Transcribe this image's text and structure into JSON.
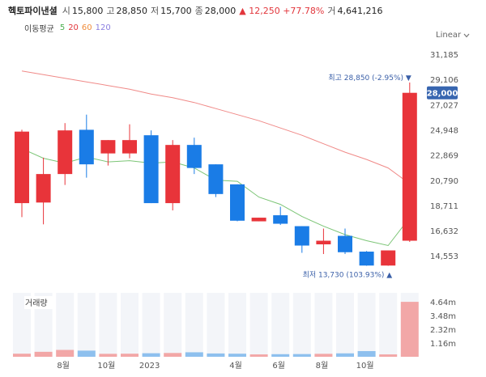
{
  "header": {
    "title": "헥토파이낸셜",
    "stats": [
      {
        "label": "시",
        "value": "15,800"
      },
      {
        "label": "고",
        "value": "28,850"
      },
      {
        "label": "저",
        "value": "15,700"
      },
      {
        "label": "종",
        "value": "28,000"
      }
    ],
    "change_arrow": "▲",
    "change_value": "12,250",
    "change_pct": "+77.78%",
    "volume_label": "거",
    "volume_value": "4,641,216"
  },
  "ma_legend": {
    "title": "이동평균",
    "items": [
      {
        "label": "5",
        "color": "#4caf50"
      },
      {
        "label": "20",
        "color": "#e2363c"
      },
      {
        "label": "60",
        "color": "#f08c3a"
      },
      {
        "label": "120",
        "color": "#8a7ee0"
      }
    ]
  },
  "scale_toggle": {
    "label": "Linear",
    "icon": "chevron-down-icon"
  },
  "colors": {
    "up": "#e8343a",
    "down": "#1a7ce6",
    "ma5": "#7cc576",
    "ma20": "#f08a88",
    "vol_up": "#f2a7a7",
    "vol_down": "#8ec0ee",
    "vol_bg": "#f3f5f9"
  },
  "chart_data": {
    "type": "candlestick",
    "y_ticks": [
      "31,185",
      "29,106",
      "27,027",
      "24,948",
      "22,869",
      "20,790",
      "18,711",
      "16,632",
      "14,553"
    ],
    "ylim": [
      13700,
      31185
    ],
    "candles": [
      {
        "o": 18900,
        "h": 24950,
        "l": 17750,
        "c": 24800
      },
      {
        "o": 18950,
        "h": 22650,
        "l": 17150,
        "c": 21300
      },
      {
        "o": 21300,
        "h": 25500,
        "l": 20400,
        "c": 24900
      },
      {
        "o": 24950,
        "h": 26200,
        "l": 21000,
        "c": 22100
      },
      {
        "o": 23000,
        "h": 24100,
        "l": 22000,
        "c": 24100
      },
      {
        "o": 23000,
        "h": 25400,
        "l": 22600,
        "c": 24100
      },
      {
        "o": 24500,
        "h": 24900,
        "l": 18900,
        "c": 18900
      },
      {
        "o": 18900,
        "h": 24100,
        "l": 18300,
        "c": 23700
      },
      {
        "o": 23700,
        "h": 24300,
        "l": 21300,
        "c": 21800
      },
      {
        "o": 22100,
        "h": 22100,
        "l": 19400,
        "c": 19650
      },
      {
        "o": 20450,
        "h": 20450,
        "l": 17400,
        "c": 17450
      },
      {
        "o": 17400,
        "h": 17700,
        "l": 17400,
        "c": 17700
      },
      {
        "o": 17900,
        "h": 18600,
        "l": 17100,
        "c": 17200
      },
      {
        "o": 17000,
        "h": 17000,
        "l": 14800,
        "c": 15400
      },
      {
        "o": 15500,
        "h": 16800,
        "l": 14700,
        "c": 15800
      },
      {
        "o": 16200,
        "h": 16800,
        "l": 14700,
        "c": 14850
      },
      {
        "o": 14900,
        "h": 14950,
        "l": 13730,
        "c": 13750
      },
      {
        "o": 13750,
        "h": 15000,
        "l": 13730,
        "c": 15000
      },
      {
        "o": 15800,
        "h": 28850,
        "l": 15700,
        "c": 28000
      }
    ],
    "ma5": [
      23400,
      22600,
      22200,
      22700,
      22300,
      22400,
      22200,
      22300,
      21800,
      20800,
      20700,
      19400,
      18800,
      17800,
      17000,
      16300,
      15800,
      15400,
      17700
    ],
    "ma20": [
      29800,
      29500,
      29200,
      28900,
      28600,
      28300,
      27900,
      27600,
      27200,
      26700,
      26200,
      25700,
      25100,
      24500,
      23800,
      23100,
      22500,
      21800,
      20500
    ],
    "volume": {
      "tick_labels": [
        "4.64m",
        "3.48m",
        "2.32m",
        "1.16m"
      ],
      "ylim": [
        0,
        5400000
      ],
      "values": [
        260000,
        420000,
        580000,
        520000,
        250000,
        260000,
        300000,
        320000,
        380000,
        280000,
        260000,
        200000,
        220000,
        230000,
        250000,
        290000,
        480000,
        200000,
        4641216
      ]
    },
    "x_ticks": [
      {
        "label": "8월",
        "index": 2
      },
      {
        "label": "10월",
        "index": 4
      },
      {
        "label": "2023",
        "index": 6
      },
      {
        "label": "4월",
        "index": 10
      },
      {
        "label": "6월",
        "index": 12
      },
      {
        "label": "8월",
        "index": 14
      },
      {
        "label": "10월",
        "index": 16
      }
    ],
    "high_annotation": "최고 28,850 (-2.95%) ▼",
    "low_annotation": "최저 13,730 (103.93%) ▲",
    "current_price_label": "28,000",
    "volume_panel_label": "거래량"
  }
}
